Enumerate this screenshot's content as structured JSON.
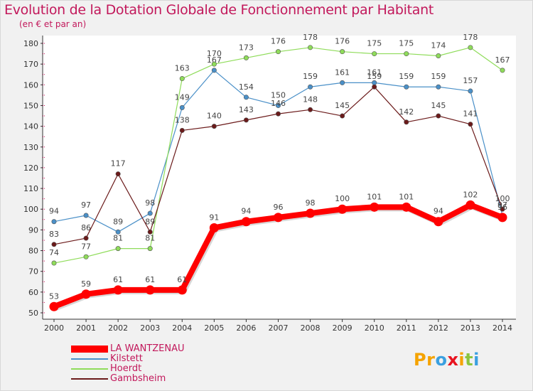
{
  "title": "Evolution de la Dotation Globale de Fonctionnement par Habitant",
  "subtitle": "(en € et par an)",
  "logo": {
    "text": "Proxiti",
    "letters": [
      "P",
      "r",
      "o",
      "x",
      "i",
      "t",
      "i"
    ],
    "colors": [
      "#f5a300",
      "#f5a300",
      "#3aa0e0",
      "#e8131f",
      "#f5a300",
      "#8bc53f",
      "#3aa0e0"
    ]
  },
  "chart_data": {
    "type": "line",
    "title": "Evolution de la Dotation Globale de Fonctionnement par Habitant",
    "xlabel": "",
    "ylabel": "(en € et par an)",
    "ylim": [
      50,
      180
    ],
    "yticks": [
      50,
      60,
      70,
      80,
      90,
      100,
      110,
      120,
      130,
      140,
      150,
      160,
      170,
      180
    ],
    "grid": false,
    "legend_position": "bottom-left",
    "x": [
      "2000",
      "2001",
      "2002",
      "2003",
      "2004",
      "2005",
      "2006",
      "2007",
      "2008",
      "2009",
      "2010",
      "2011",
      "2012",
      "2013",
      "2014"
    ],
    "series": [
      {
        "name": "LA WANTZENAU",
        "color": "#ff0000",
        "bold": true,
        "values": [
          53,
          59,
          61,
          61,
          61,
          91,
          94,
          96,
          98,
          100,
          101,
          101,
          94,
          102,
          96
        ]
      },
      {
        "name": "Kilstett",
        "color": "#4a90c8",
        "bold": false,
        "values": [
          94,
          97,
          89,
          98,
          149,
          167,
          154,
          150,
          159,
          161,
          161,
          159,
          159,
          157,
          97
        ]
      },
      {
        "name": "Hoerdt",
        "color": "#8fdc5a",
        "bold": false,
        "values": [
          74,
          77,
          81,
          81,
          163,
          170,
          173,
          176,
          178,
          176,
          175,
          175,
          174,
          178,
          167
        ]
      },
      {
        "name": "Gambsheim",
        "color": "#6b1a1a",
        "bold": false,
        "values": [
          83,
          86,
          117,
          89,
          138,
          140,
          143,
          146,
          148,
          145,
          159,
          142,
          145,
          141,
          100
        ]
      }
    ]
  }
}
